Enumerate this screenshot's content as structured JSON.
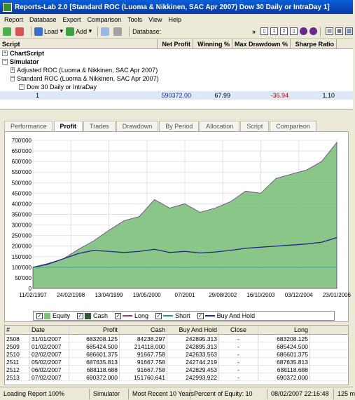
{
  "window": {
    "title": "Reports-Lab 2.0 [Standard ROC (Luoma & Nikkinen,  SAC Apr 2007)  Dow 30 Daily or IntraDay  1]"
  },
  "menu": [
    "Report",
    "Database",
    "Export",
    "Comparison",
    "Tools",
    "View",
    "Help"
  ],
  "toolbar": {
    "load": "Load",
    "add": "Add",
    "database_label": "Database:",
    "page1": "1",
    "page2": "2"
  },
  "grid": {
    "headers": [
      "Script",
      "Net Profit",
      "Winning %",
      "Max Drawdown %",
      "Sharpe Ratio"
    ],
    "rows": [
      {
        "label": "ChartScript",
        "pm": "+",
        "indent": 0,
        "bold": true
      },
      {
        "label": "Simulator",
        "pm": "−",
        "indent": 0,
        "bold": true
      },
      {
        "label": "Adjusted ROC (Luoma & Nikkinen,  SAC Apr 2007)",
        "pm": "+",
        "indent": 1
      },
      {
        "label": "Standard ROC (Luoma & Nikkinen,  SAC Apr 2007)",
        "pm": "−",
        "indent": 1
      },
      {
        "label": "Dow 30 Daily or IntraDay",
        "pm": "−",
        "indent": 2
      },
      {
        "label": "1",
        "pm": "",
        "indent": 4,
        "net_profit": "590372.00",
        "winning": "67.99",
        "drawdown": "-36.94",
        "sharpe": "1.10"
      }
    ]
  },
  "tabs": [
    "Performance",
    "Profit",
    "Trades",
    "Drawdown",
    "By Period",
    "Allocation",
    "Script",
    "Comparison"
  ],
  "active_tab": "Profit",
  "chart_data": {
    "type": "area",
    "y_ticks": [
      "0",
      "50'000",
      "100'000",
      "150'000",
      "200'000",
      "250'000",
      "300'000",
      "350'000",
      "400'000",
      "450'000",
      "500'000",
      "550'000",
      "600'000",
      "650'000",
      "700'000"
    ],
    "ylim": [
      0,
      700000
    ],
    "x_ticks": [
      "11/02/1997",
      "24/02/1998",
      "13/04/1999",
      "19/05/2000",
      "07/2001",
      "29/08/2002",
      "16/10/2003",
      "03/12/2004",
      "23/01/2006"
    ],
    "series": [
      {
        "name": "Equity",
        "color": "#7cc07a",
        "values": [
          100000,
          118000,
          140000,
          185000,
          225000,
          275000,
          320000,
          340000,
          420000,
          380000,
          400000,
          360000,
          380000,
          410000,
          460000,
          450000,
          520000,
          540000,
          560000,
          600000,
          690000
        ]
      },
      {
        "name": "Buy And Hold",
        "color": "#22228a",
        "values": [
          100000,
          115000,
          140000,
          165000,
          180000,
          175000,
          170000,
          175000,
          185000,
          170000,
          175000,
          168000,
          172000,
          180000,
          190000,
          195000,
          200000,
          205000,
          210000,
          218000,
          240000
        ]
      },
      {
        "name": "Short",
        "color": "#2a9a9a",
        "values": [
          100000,
          100000,
          100000,
          100000,
          100000,
          100000,
          100000,
          100000,
          100000,
          100000,
          100000,
          100000,
          100000,
          100000,
          100000,
          100000,
          100000,
          100000,
          100000,
          100000,
          100000
        ]
      }
    ],
    "legend": [
      "Equity",
      "Cash",
      "Long",
      "Short",
      "Buy And Hold"
    ]
  },
  "legend_colors": {
    "Equity": "#7cc07a",
    "Cash": "#2e5a30",
    "Long": "#8a3a8a",
    "Short": "#2a9a9a",
    "Buy And Hold": "#22228a"
  },
  "table": {
    "headers": [
      "#",
      "Date",
      "Profit",
      "Cash",
      "Buy And Hold",
      "Close",
      "Long"
    ],
    "rows": [
      [
        "2508",
        "31/01/2007",
        "683208.125",
        "84238.297",
        "242895.313",
        "-",
        "683208.125"
      ],
      [
        "2509",
        "01/02/2007",
        "685424.500",
        "214118.000",
        "242895.313",
        "-",
        "685424.500"
      ],
      [
        "2510",
        "02/02/2007",
        "686601.375",
        "91667.758",
        "242633.563",
        "-",
        "686601.375"
      ],
      [
        "2511",
        "05/02/2007",
        "687635.813",
        "91667.758",
        "242744.219",
        "-",
        "687635.813"
      ],
      [
        "2512",
        "06/02/2007",
        "688118.688",
        "91667.758",
        "242829.453",
        "-",
        "688118.688"
      ],
      [
        "2513",
        "07/02/2007",
        "690372.000",
        "151760.641",
        "242993.922",
        "-",
        "690372.000"
      ]
    ]
  },
  "status": {
    "loading": "Loading Report 100%",
    "mode": "Simulator",
    "range": "Most Recent 10 Years",
    "equity": "Percent of Equity: 10",
    "time": "08/02/2007 22:16:48",
    "mem": "125 m"
  }
}
